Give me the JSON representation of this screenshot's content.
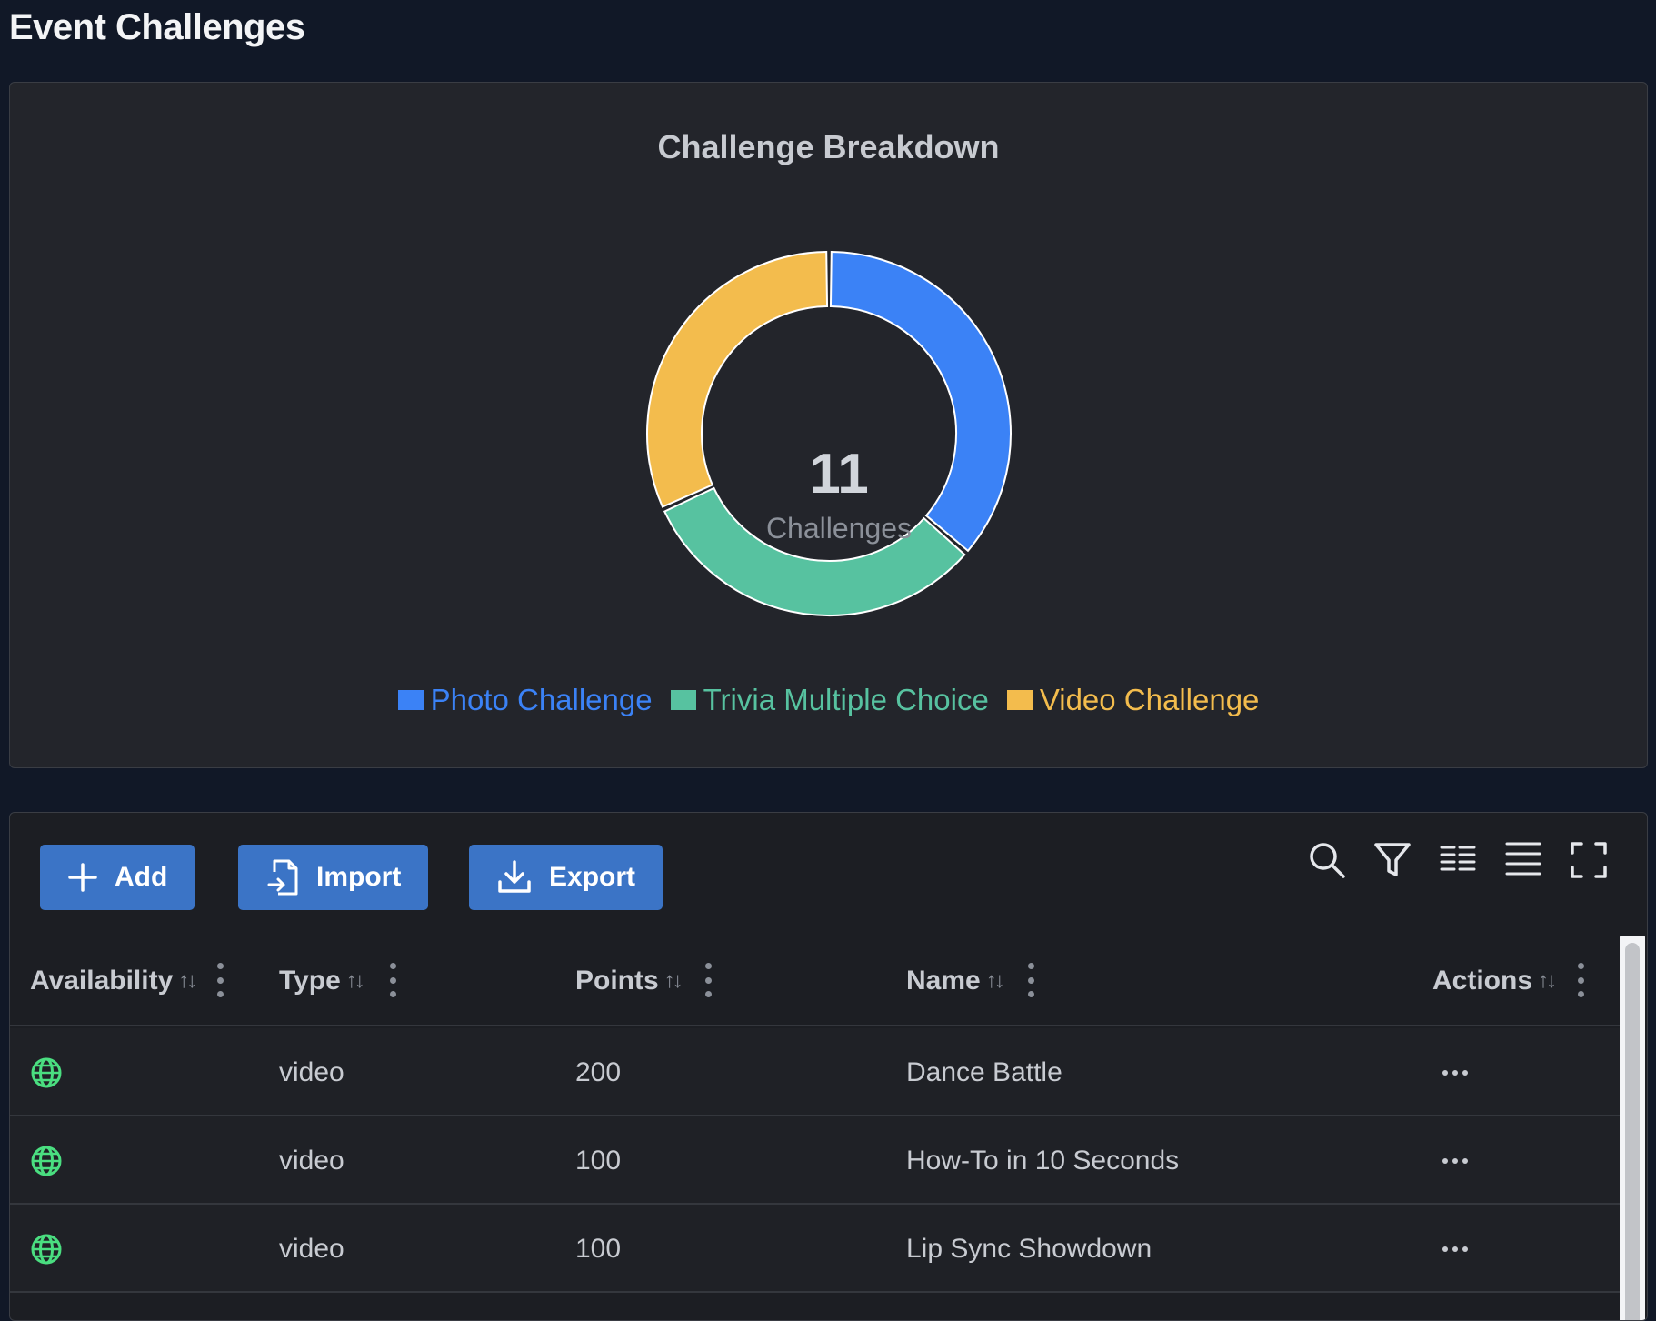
{
  "page": {
    "title": "Event Challenges"
  },
  "colors": {
    "photo": "#3b82f6",
    "trivia": "#57c2a0",
    "video": "#f3bc4d",
    "button": "#3b74c6",
    "available": "#4ade80"
  },
  "chart_data": {
    "type": "pie",
    "title": "Challenge Breakdown",
    "center_value": "11",
    "center_label": "Challenges",
    "categories": [
      "Photo Challenge",
      "Trivia Multiple Choice",
      "Video Challenge"
    ],
    "values": [
      4,
      3.5,
      3.5
    ],
    "colors": [
      "#3b82f6",
      "#57c2a0",
      "#f3bc4d"
    ],
    "legend_position": "bottom"
  },
  "toolbar": {
    "add_label": "Add",
    "import_label": "Import",
    "export_label": "Export",
    "icons": [
      "search-icon",
      "filter-icon",
      "density-icon",
      "rows-icon",
      "fullscreen-icon"
    ]
  },
  "table": {
    "columns": [
      "Availability",
      "Type",
      "Points",
      "Name",
      "Actions"
    ],
    "rows": [
      {
        "availability": "globe-icon",
        "type": "video",
        "points": "200",
        "name": "Dance Battle",
        "actions": "..."
      },
      {
        "availability": "globe-icon",
        "type": "video",
        "points": "100",
        "name": "How-To in 10 Seconds",
        "actions": "..."
      },
      {
        "availability": "globe-icon",
        "type": "video",
        "points": "100",
        "name": "Lip Sync Showdown",
        "actions": "..."
      }
    ]
  }
}
